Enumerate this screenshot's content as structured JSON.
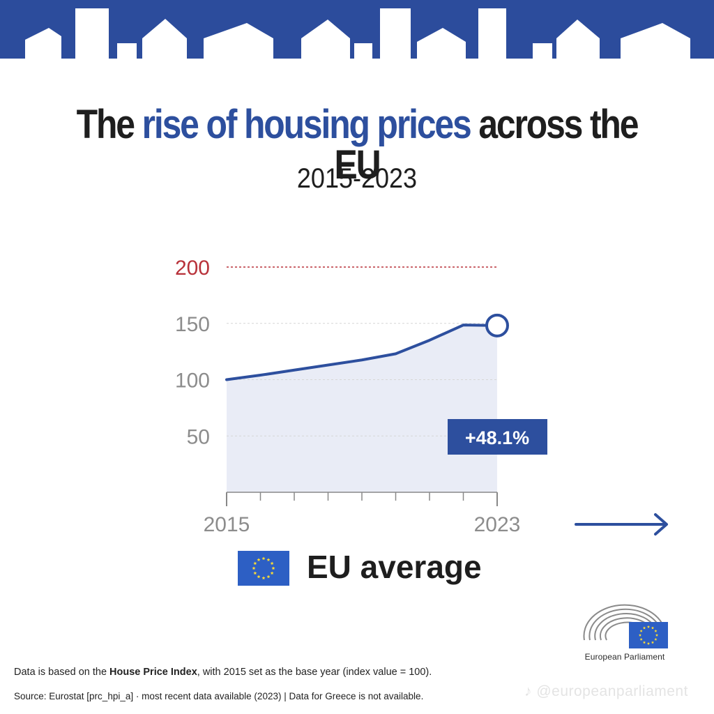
{
  "title": {
    "part1": "The ",
    "highlight": "rise of housing prices",
    "part2": " across the EU"
  },
  "subtitle": "2015-2023",
  "chart_data": {
    "type": "area",
    "x": [
      2015,
      2016,
      2017,
      2018,
      2019,
      2020,
      2021,
      2022,
      2023
    ],
    "series": [
      {
        "name": "EU average",
        "values": [
          100,
          104,
          108.5,
          113,
          117.5,
          123,
          135,
          148.5,
          148.1
        ]
      }
    ],
    "xlim": [
      2015,
      2023
    ],
    "ylim": [
      0,
      200
    ],
    "y_ticks": [
      50,
      100,
      150,
      200
    ],
    "y_tick_labels": [
      "50",
      "100",
      "150",
      "200"
    ],
    "x_tick_labels": [
      "2015",
      "2023"
    ],
    "annotation": "+48.1%",
    "reference_line": 200,
    "grid": true,
    "colors": {
      "line": "#2d4f9e",
      "fill": "#e9ecf6",
      "reference": "#b8323a",
      "grid": "#d6d6d6",
      "tick_label": "#8c8c8c"
    }
  },
  "legend": {
    "label": "EU average",
    "flag_icon": "eu-flag-icon"
  },
  "logo": {
    "name": "European Parliament",
    "icon": "hemicycle-icon"
  },
  "footnote": {
    "prefix": "Data is based on the ",
    "bold": "House Price Index",
    "suffix": ", with 2015 set as the base year (index value = 100)."
  },
  "source": "Source: Eurostat [prc_hpi_a]  ·  most recent data available (2023)  |  Data for Greece is not available.",
  "watermark": "♪ @europeanparliament",
  "colors": {
    "brand_blue": "#2d4f9e",
    "banner_blue": "#2c4c9c"
  }
}
